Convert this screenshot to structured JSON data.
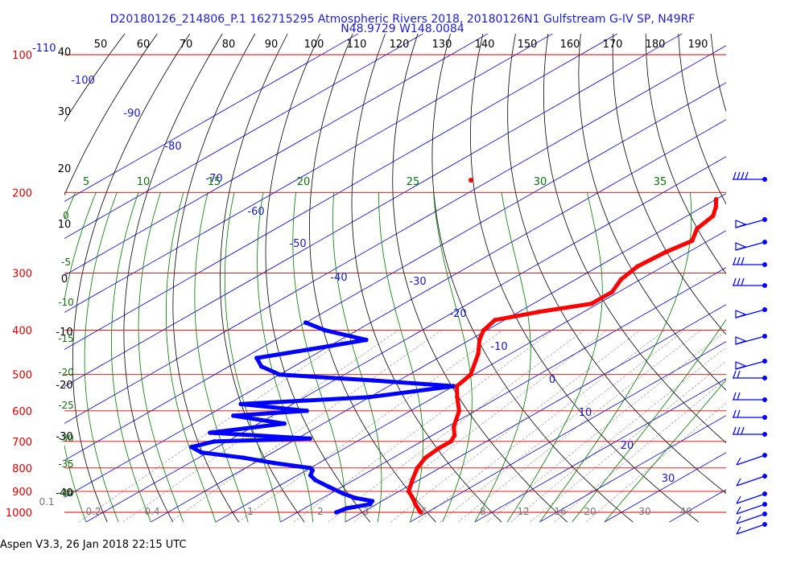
{
  "header": {
    "title_line1": "D20180126_214806_P.1 162715295 Atmospheric Rivers 2018, 20180126N1 Gulfstream G-IV SP, N49RF",
    "title_line2": "N48.9729 W148.0084"
  },
  "footer": {
    "text": "Aspen V3.3, 26 Jan 2018  22:15 UTC"
  },
  "colors": {
    "isobar": "#dd0000",
    "temperature": "#ff0000",
    "dewpoint": "#0000ff",
    "isotherm": "#0000cc",
    "dry_adiabat": "#000000",
    "moist_adiabat": "#007700",
    "mixing_ratio": "#555555",
    "labels_blue": "#1818c8",
    "labels_green": "#107010",
    "labels_gray": "#777777"
  },
  "chart_data": {
    "type": "skew-t log-p",
    "pressure_axis": {
      "ticks": [
        "100",
        "200",
        "300",
        "400",
        "500",
        "600",
        "700",
        "800",
        "900",
        "1000"
      ],
      "ylim": [
        100,
        1000
      ],
      "scale": "log"
    },
    "top_axis_ticks": [
      "50",
      "60",
      "70",
      "80",
      "90",
      "100",
      "110",
      "120",
      "130",
      "140",
      "150",
      "160",
      "170",
      "180",
      "190"
    ],
    "top_left_label": "-110",
    "dry_adiabat_labels": [
      "40",
      "30",
      "20",
      "10",
      "0",
      "-10",
      "-20",
      "-30",
      "-40"
    ],
    "isotherm_labels": [
      "-100",
      "-90",
      "-80",
      "-70",
      "-60",
      "-50",
      "-40",
      "-30",
      "-20",
      "-10",
      "0",
      "10",
      "20",
      "30"
    ],
    "moist_adiabat_labels_top": [
      "5",
      "10",
      "15",
      "20",
      "25",
      "30",
      "35"
    ],
    "moist_adiabat_labels_left": [
      "0",
      "-5",
      "-10",
      "-15",
      "-20",
      "-25",
      "-30",
      "-35",
      "-40"
    ],
    "mixing_ratio_labels": [
      "0.1",
      "0.2",
      "0.4",
      "1",
      "2",
      "3",
      "6",
      "8",
      "12",
      "16",
      "20",
      "30",
      "40"
    ],
    "temperature": [
      {
        "p": 1000,
        "t": 9.0
      },
      {
        "p": 960,
        "t": 6.0
      },
      {
        "p": 925,
        "t": 3.5
      },
      {
        "p": 900,
        "t": 1.5
      },
      {
        "p": 850,
        "t": -1.0
      },
      {
        "p": 800,
        "t": -3.5
      },
      {
        "p": 760,
        "t": -5.0
      },
      {
        "p": 725,
        "t": -5.5
      },
      {
        "p": 700,
        "t": -5.5
      },
      {
        "p": 680,
        "t": -6.5
      },
      {
        "p": 650,
        "t": -9.0
      },
      {
        "p": 600,
        "t": -12.5
      },
      {
        "p": 560,
        "t": -16.5
      },
      {
        "p": 530,
        "t": -19.5
      },
      {
        "p": 500,
        "t": -20.5
      },
      {
        "p": 450,
        "t": -25.0
      },
      {
        "p": 420,
        "t": -28.5
      },
      {
        "p": 400,
        "t": -30.5
      },
      {
        "p": 380,
        "t": -31.5
      },
      {
        "p": 365,
        "t": -27.0
      },
      {
        "p": 350,
        "t": -21.0
      },
      {
        "p": 330,
        "t": -21.0
      },
      {
        "p": 310,
        "t": -23.0
      },
      {
        "p": 290,
        "t": -24.0
      },
      {
        "p": 270,
        "t": -23.5
      },
      {
        "p": 255,
        "t": -22.5
      },
      {
        "p": 240,
        "t": -25.0
      },
      {
        "p": 225,
        "t": -26.0
      },
      {
        "p": 215,
        "t": -28.0
      },
      {
        "p": 207,
        "t": -30.0
      }
    ],
    "dewpoint": [
      {
        "p": 1000,
        "t": -4.0
      },
      {
        "p": 980,
        "t": -3.5
      },
      {
        "p": 960,
        "t": -1.0
      },
      {
        "p": 945,
        "t": -1.5
      },
      {
        "p": 930,
        "t": -5.0
      },
      {
        "p": 910,
        "t": -8.0
      },
      {
        "p": 880,
        "t": -12.0
      },
      {
        "p": 850,
        "t": -16.0
      },
      {
        "p": 830,
        "t": -18.0
      },
      {
        "p": 810,
        "t": -19.0
      },
      {
        "p": 800,
        "t": -20.0
      },
      {
        "p": 780,
        "t": -27.0
      },
      {
        "p": 760,
        "t": -33.0
      },
      {
        "p": 740,
        "t": -41.0
      },
      {
        "p": 720,
        "t": -44.0
      },
      {
        "p": 700,
        "t": -42.0
      },
      {
        "p": 690,
        "t": -28.0
      },
      {
        "p": 670,
        "t": -45.0
      },
      {
        "p": 640,
        "t": -36.0
      },
      {
        "p": 615,
        "t": -46.0
      },
      {
        "p": 600,
        "t": -36.0
      },
      {
        "p": 580,
        "t": -48.0
      },
      {
        "p": 560,
        "t": -30.0
      },
      {
        "p": 530,
        "t": -20.0
      },
      {
        "p": 515,
        "t": -34.0
      },
      {
        "p": 500,
        "t": -50.0
      },
      {
        "p": 480,
        "t": -55.0
      },
      {
        "p": 460,
        "t": -58.0
      },
      {
        "p": 440,
        "t": -52.0
      },
      {
        "p": 420,
        "t": -46.0
      },
      {
        "p": 400,
        "t": -55.0
      },
      {
        "p": 385,
        "t": -60.0
      }
    ],
    "wind_barbs_count": 18
  }
}
